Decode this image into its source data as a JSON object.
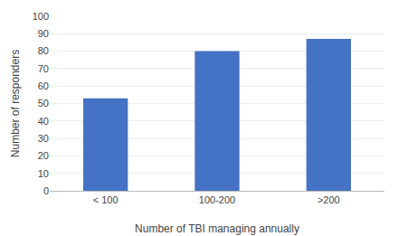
{
  "chart_data": {
    "type": "bar",
    "categories": [
      "< 100",
      "100-200",
      ">200"
    ],
    "values": [
      53,
      80,
      87
    ],
    "color": "#4472C4",
    "xlabel": "Number of TBI managing annually",
    "ylabel": "Number of responders",
    "ylim": [
      0,
      100
    ],
    "yticks": [
      0,
      10,
      20,
      30,
      40,
      50,
      60,
      70,
      80,
      90,
      100
    ],
    "grid": true
  }
}
